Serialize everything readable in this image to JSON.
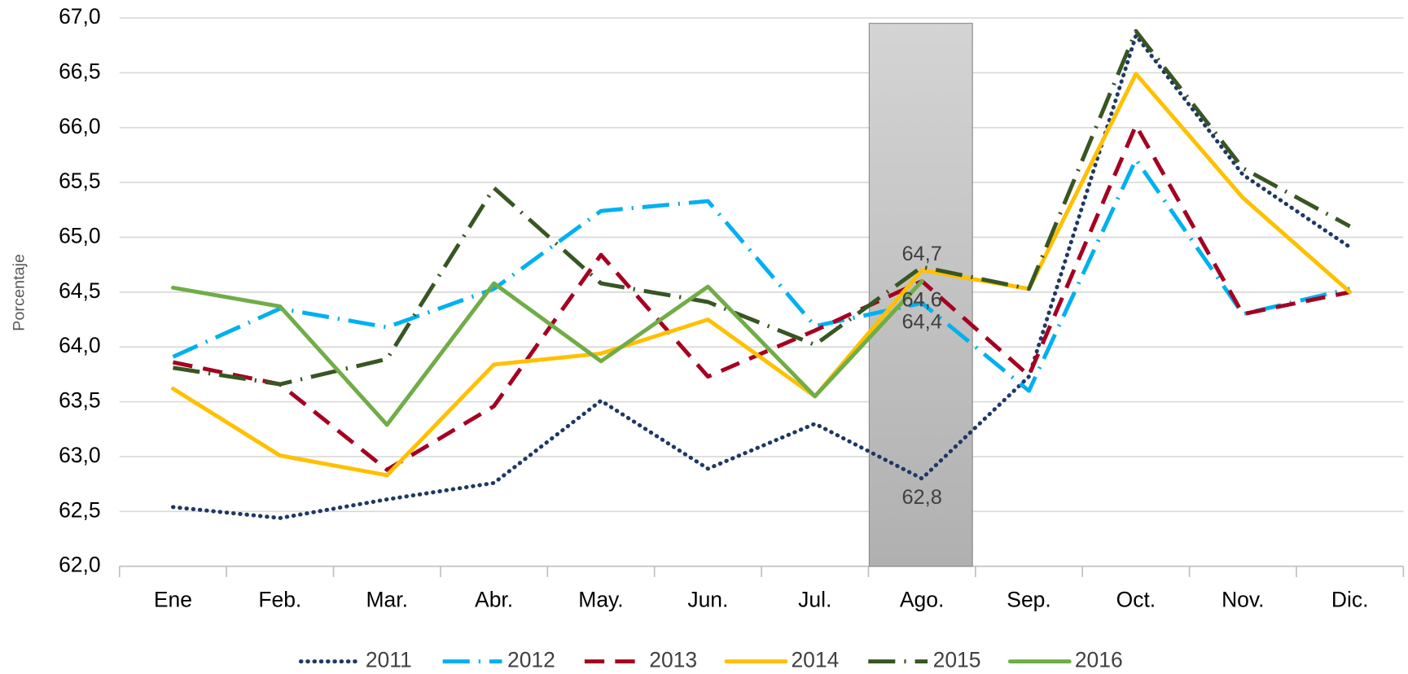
{
  "chart_data": {
    "type": "line",
    "y_label": "Porcentaje",
    "categories": [
      "Ene",
      "Feb.",
      "Mar.",
      "Abr.",
      "May.",
      "Jun.",
      "Jul.",
      "Ago.",
      "Sep.",
      "Oct.",
      "Nov.",
      "Dic."
    ],
    "ylim": [
      62.0,
      67.0
    ],
    "yticks": [
      {
        "value": 62.0,
        "label": "62,0"
      },
      {
        "value": 62.5,
        "label": "62,5"
      },
      {
        "value": 63.0,
        "label": "63,0"
      },
      {
        "value": 63.5,
        "label": "63,5"
      },
      {
        "value": 64.0,
        "label": "64,0"
      },
      {
        "value": 64.5,
        "label": "64,5"
      },
      {
        "value": 65.0,
        "label": "65,0"
      },
      {
        "value": 65.5,
        "label": "65,5"
      },
      {
        "value": 66.0,
        "label": "66,0"
      },
      {
        "value": 66.5,
        "label": "66,5"
      },
      {
        "value": 67.0,
        "label": "67,0"
      }
    ],
    "grid": true,
    "legend": "bottom",
    "series": [
      {
        "name": "2011",
        "color": "#1f3864",
        "dash": "dotted",
        "values": [
          62.54,
          62.44,
          62.61,
          62.76,
          63.51,
          62.89,
          63.3,
          62.8,
          63.73,
          66.84,
          65.57,
          64.91
        ],
        "value_labels": [
          null,
          null,
          null,
          null,
          null,
          null,
          null,
          "62,8",
          null,
          null,
          null,
          null
        ]
      },
      {
        "name": "2012",
        "color": "#00b0f0",
        "dash": "dash-dot",
        "values": [
          63.91,
          64.35,
          64.18,
          64.53,
          65.24,
          65.33,
          64.19,
          64.4,
          63.6,
          65.71,
          64.3,
          64.53
        ],
        "value_labels": [
          null,
          null,
          null,
          null,
          null,
          null,
          null,
          "64,4",
          null,
          null,
          null,
          null
        ]
      },
      {
        "name": "2013",
        "color": "#a50021",
        "dash": "dashed",
        "values": [
          63.86,
          63.66,
          62.88,
          63.46,
          64.84,
          63.73,
          64.15,
          64.6,
          63.74,
          66.02,
          64.3,
          64.5
        ],
        "value_labels": [
          null,
          null,
          null,
          null,
          null,
          null,
          null,
          "64,6",
          null,
          null,
          null,
          null
        ]
      },
      {
        "name": "2014",
        "color": "#ffc000",
        "dash": "solid",
        "values": [
          63.62,
          63.01,
          62.83,
          63.84,
          63.94,
          64.25,
          63.55,
          64.7,
          64.53,
          66.49,
          65.36,
          64.5
        ],
        "value_labels": [
          null,
          null,
          null,
          null,
          null,
          null,
          null,
          "64,7",
          null,
          null,
          null,
          null
        ]
      },
      {
        "name": "2015",
        "color": "#375623",
        "dash": "dash-dot",
        "values": [
          63.81,
          63.66,
          63.89,
          65.45,
          64.58,
          64.41,
          64.02,
          64.73,
          64.53,
          66.88,
          65.63,
          65.1
        ]
      },
      {
        "name": "2016",
        "color": "#70ad47",
        "dash": "solid",
        "values": [
          64.54,
          64.37,
          63.29,
          64.58,
          63.87,
          64.55,
          63.55,
          64.6,
          null,
          null,
          null,
          null
        ],
        "value_labels": [
          null,
          null,
          null,
          null,
          null,
          null,
          null,
          "64,6",
          null,
          null,
          null,
          null
        ]
      }
    ]
  }
}
